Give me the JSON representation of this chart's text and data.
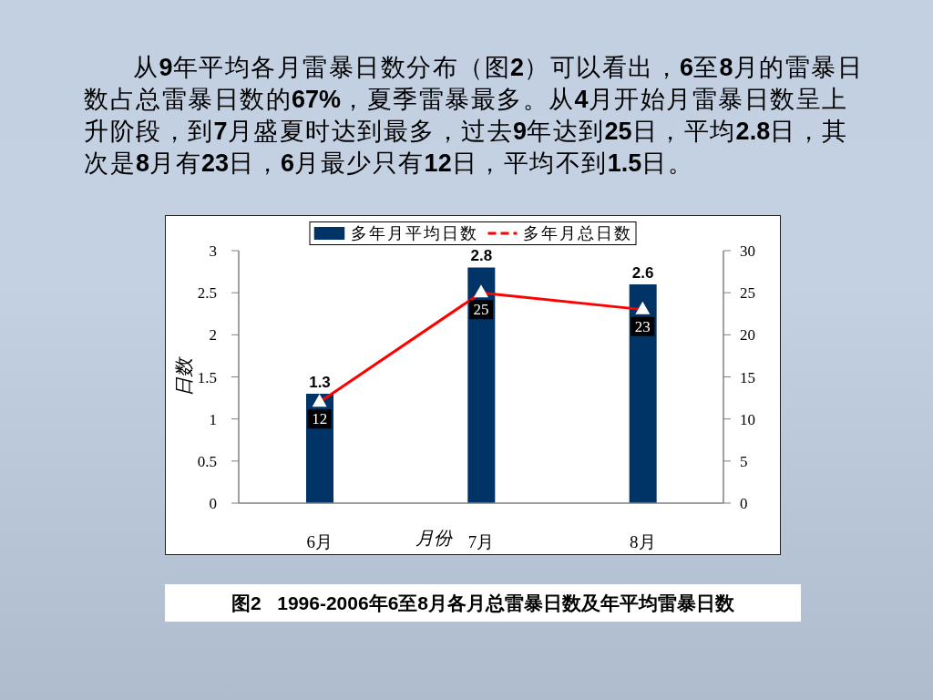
{
  "chart_data": {
    "type": "bar",
    "title": "图2   1996-2006年6至8月各月总雷暴日数及年平均雷暴日数",
    "annotations": [
      "从9年平均各月雷暴日数分布（图2）可以看出，6至8月的雷暴日数占总雷暴日数的67%，夏季雷暴最多。从4月开始月雷暴日数呈上升阶段，到7月盛夏时达到最多，过去9年达到25日，平均2.8日，其次是8月有23日，6月最少只有12日，平均不到1.5日。"
    ],
    "xlabel": "月份",
    "ylabel": "日数",
    "categories": [
      "6月",
      "7月",
      "8月"
    ],
    "series": [
      {
        "name": "多年月平均日数",
        "color": "#003366",
        "values": [
          1.3,
          2.8,
          2.6
        ]
      },
      {
        "name": "多年月总日数",
        "type": "line",
        "axis": "y2",
        "color": "#ff0000",
        "values": [
          12,
          25,
          23
        ]
      }
    ],
    "ylim": [
      0,
      3
    ],
    "yticks": [
      0,
      0.5,
      1,
      1.5,
      2,
      2.5,
      3
    ],
    "y2lim": [
      0,
      30
    ],
    "y2ticks": [
      0,
      5,
      10,
      15,
      20,
      25,
      30
    ],
    "legend": "top",
    "data_labels": true,
    "marker": "triangle",
    "line_style": "solid"
  }
}
